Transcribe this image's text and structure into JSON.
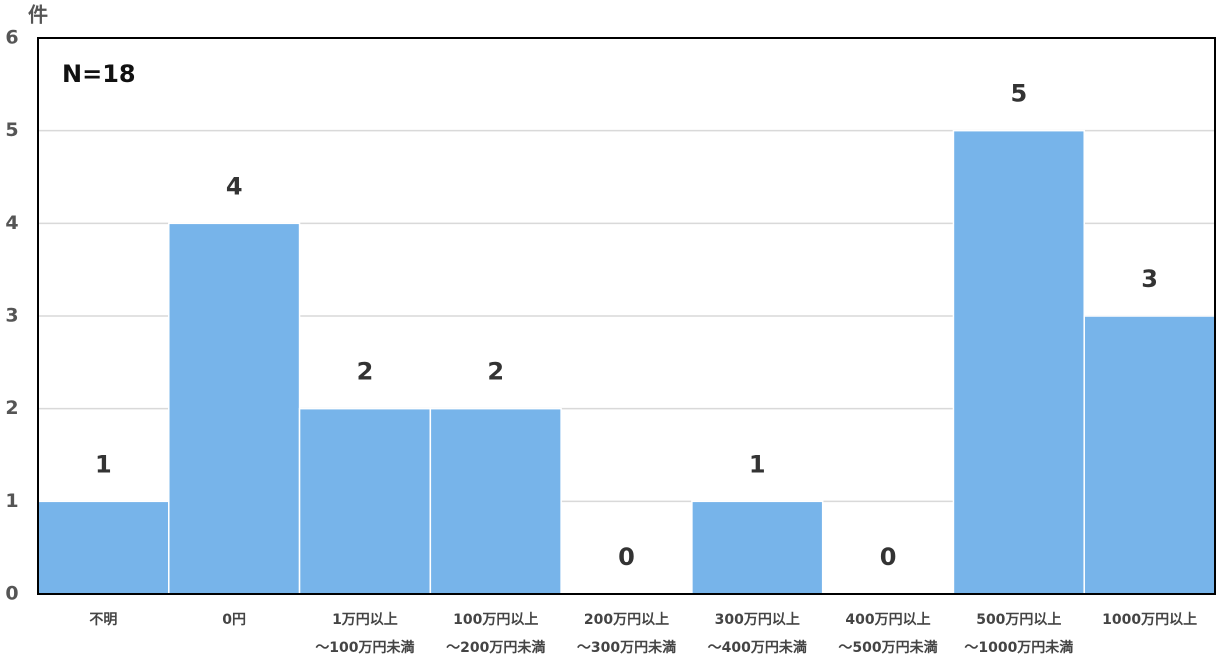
{
  "chart_data": {
    "type": "bar",
    "y_label": "件",
    "annotation": "N=18",
    "categories": [
      "不明",
      "0円",
      "1万円以上\n～100万円未満",
      "100万円以上\n～200万円未満",
      "200万円以上\n～300万円未満",
      "300万円以上\n～400万円未満",
      "400万円以上\n～500万円未満",
      "500万円以上\n～1000万円未満",
      "1000万円以上"
    ],
    "values": [
      1,
      4,
      2,
      2,
      0,
      1,
      0,
      5,
      3
    ],
    "color": "#77b4ea",
    "ylim": [
      0,
      6
    ],
    "yticks": [
      0,
      1,
      2,
      3,
      4,
      5,
      6
    ],
    "grid": true
  }
}
